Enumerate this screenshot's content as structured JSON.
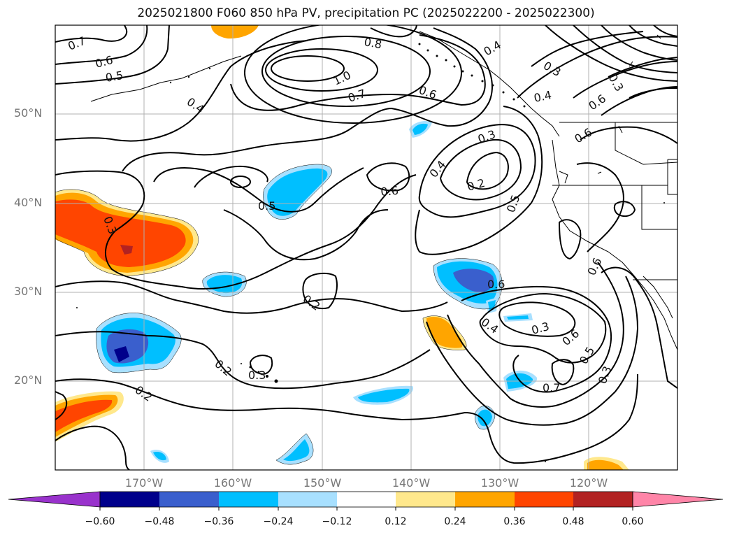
{
  "title": "2025021800 F060 850 hPa PV, precipitation PC (2025022200 - 2025022300)",
  "lat_labels": [
    "50°N",
    "40°N",
    "30°N",
    "20°N"
  ],
  "lon_labels": [
    "170°W",
    "160°W",
    "150°W",
    "140°W",
    "130°W",
    "120°W"
  ],
  "contour_labels": [
    "0.7",
    "0.6",
    "0.5",
    "0.4",
    "0.8",
    "1.0",
    "0.7",
    "0.6",
    "0.4",
    "0.3",
    "0.4",
    "0.6",
    "0.3",
    "0.6",
    "0.5",
    "0.6",
    "0.4",
    "0.2",
    "0.3",
    "0.5",
    "0.3",
    "0.2",
    "0.6",
    "0.4",
    "0.3",
    "0.6",
    "0.5",
    "0.3",
    "0.7",
    "0.2",
    "0.3",
    "0.2",
    "0.6"
  ],
  "colorbar": {
    "ticks": [
      "−0.60",
      "−0.48",
      "−0.36",
      "−0.24",
      "−0.12",
      "0.12",
      "0.24",
      "0.36",
      "0.48",
      "0.60"
    ],
    "colors": [
      "#9932cc",
      "#00008b",
      "#3a5fcd",
      "#00bfff",
      "#a8e0ff",
      "#ffffff",
      "#ffe88c",
      "#ffa500",
      "#ff4500",
      "#b22222",
      "#ff85a8"
    ]
  }
}
